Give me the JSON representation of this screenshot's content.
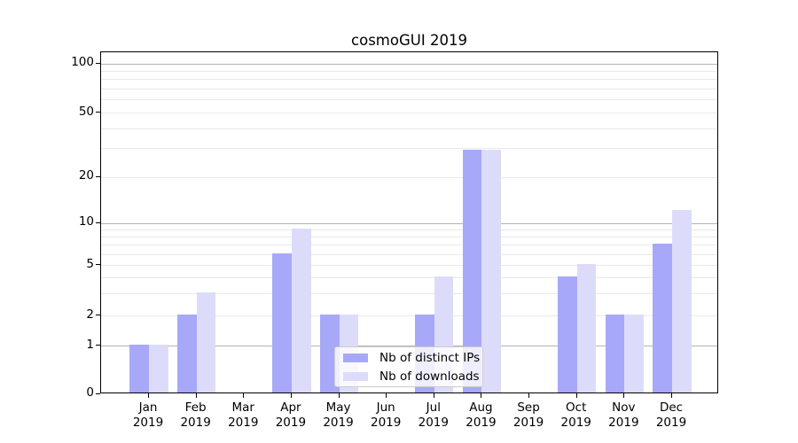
{
  "title": "cosmoGUI 2019",
  "legend": {
    "items": [
      {
        "label": "Nb of distinct IPs"
      },
      {
        "label": "Nb of downloads"
      }
    ]
  },
  "chart_data": {
    "type": "bar",
    "title": "cosmoGUI 2019",
    "categories": [
      "Jan",
      "Feb",
      "Mar",
      "Apr",
      "May",
      "Jun",
      "Jul",
      "Aug",
      "Sep",
      "Oct",
      "Nov",
      "Dec"
    ],
    "year": "2019",
    "series": [
      {
        "name": "Nb of distinct IPs",
        "color": "#a8a8f8",
        "values": [
          1,
          2,
          0,
          6,
          2,
          0,
          2,
          29,
          0,
          4,
          2,
          7
        ]
      },
      {
        "name": "Nb of downloads",
        "color": "#dcdcfa",
        "values": [
          1,
          3,
          0,
          9,
          2,
          0,
          4,
          29,
          0,
          5,
          2,
          12
        ]
      }
    ],
    "xlabel": "",
    "ylabel": "",
    "yscale": "symlog",
    "ylim": [
      0,
      117
    ],
    "y_tick_values": [
      0,
      1,
      2,
      5,
      10,
      20,
      50,
      100
    ],
    "y_tick_labels": [
      "0",
      "1",
      "2",
      "5",
      "10",
      "20",
      "50",
      "100"
    ],
    "y_major_gridlines": [
      1,
      10,
      100
    ],
    "y_minor_gridlines": [
      2,
      3,
      4,
      5,
      6,
      7,
      8,
      9,
      20,
      30,
      40,
      50,
      60,
      70,
      80,
      90
    ],
    "grid": true,
    "legend_position": "lower center"
  },
  "colors": {
    "bar_distinct_ips": "#a8a8f8",
    "bar_downloads": "#dcdcfa",
    "major_grid": "#b3b3b3",
    "minor_grid": "#e9e9e9",
    "axis_spine": "#000000",
    "text": "#000000",
    "legend_border": "#cccccc"
  }
}
